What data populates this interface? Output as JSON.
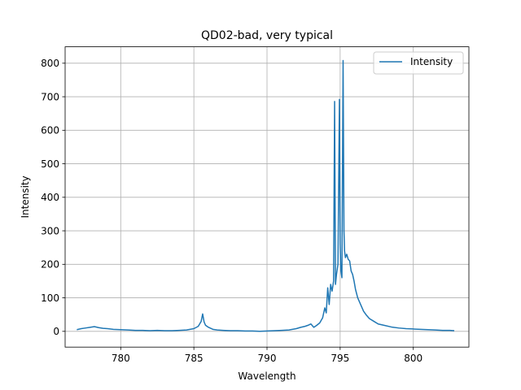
{
  "chart_data": {
    "type": "line",
    "title": "QD02-bad, very typical",
    "xlabel": "Wavelength",
    "ylabel": "Intensity",
    "xlim": [
      776.2,
      803.8
    ],
    "ylim": [
      -47,
      849
    ],
    "x_ticks": [
      780,
      785,
      790,
      795,
      800
    ],
    "y_ticks": [
      0,
      100,
      200,
      300,
      400,
      500,
      600,
      700,
      800
    ],
    "grid": true,
    "legend_position": "top-right",
    "series": [
      {
        "name": "Intensity",
        "color": "#1f77b4",
        "x": [
          777.0,
          777.3,
          777.6,
          777.9,
          778.2,
          778.5,
          778.8,
          779.1,
          779.5,
          780.0,
          780.5,
          781.0,
          781.5,
          782.0,
          782.5,
          783.0,
          783.5,
          784.0,
          784.5,
          785.0,
          785.3,
          785.5,
          785.6,
          785.7,
          785.8,
          786.0,
          786.3,
          786.6,
          787.0,
          787.5,
          788.0,
          788.5,
          789.0,
          789.5,
          790.0,
          790.5,
          791.0,
          791.5,
          792.0,
          792.3,
          792.6,
          792.8,
          793.0,
          793.2,
          793.4,
          793.6,
          793.8,
          793.95,
          794.05,
          794.15,
          794.25,
          794.35,
          794.45,
          794.55,
          794.62,
          794.68,
          794.75,
          794.85,
          794.95,
          795.0,
          795.05,
          795.12,
          795.2,
          795.26,
          795.3,
          795.36,
          795.45,
          795.55,
          795.65,
          795.75,
          795.85,
          795.95,
          796.05,
          796.2,
          796.4,
          796.6,
          796.8,
          797.0,
          797.3,
          797.6,
          798.0,
          798.5,
          799.0,
          799.5,
          800.0,
          800.5,
          801.0,
          801.5,
          802.0,
          802.5,
          802.8
        ],
        "y": [
          5,
          8,
          10,
          12,
          14,
          11,
          9,
          8,
          6,
          5,
          4,
          3,
          3,
          2,
          3,
          2,
          2,
          3,
          4,
          8,
          15,
          30,
          52,
          28,
          18,
          12,
          6,
          4,
          3,
          2,
          2,
          1,
          1,
          0,
          1,
          2,
          3,
          4,
          8,
          12,
          15,
          18,
          22,
          12,
          18,
          25,
          40,
          70,
          55,
          130,
          80,
          140,
          120,
          150,
          686,
          140,
          170,
          200,
          692,
          260,
          180,
          160,
          808,
          300,
          240,
          220,
          230,
          215,
          210,
          180,
          170,
          150,
          125,
          100,
          80,
          60,
          48,
          38,
          30,
          22,
          18,
          13,
          10,
          8,
          7,
          6,
          5,
          4,
          3,
          3,
          2
        ]
      }
    ]
  }
}
